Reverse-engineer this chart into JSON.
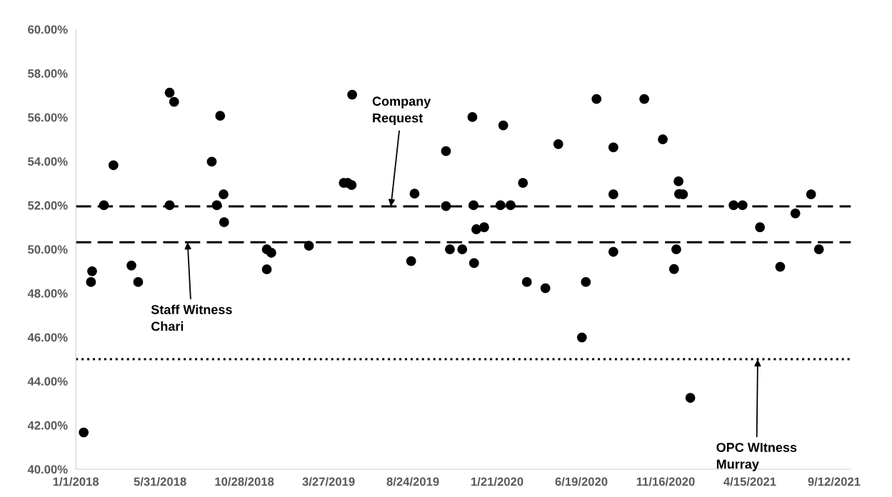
{
  "chart_data": {
    "type": "scatter",
    "marker": "circle",
    "grid": false,
    "legend": false,
    "x": [
      "2018-01-15",
      "2018-01-28",
      "2018-01-30",
      "2018-02-20",
      "2018-03-09",
      "2018-04-10",
      "2018-04-22",
      "2018-06-17",
      "2018-06-25",
      "2018-06-17",
      "2018-08-31",
      "2018-09-15",
      "2018-09-09",
      "2018-09-21",
      "2018-09-22",
      "2018-12-07",
      "2018-12-15",
      "2018-12-07",
      "2019-02-20",
      "2019-04-23",
      "2019-04-30",
      "2019-05-07",
      "2019-05-08",
      "2019-08-27",
      "2019-08-21",
      "2019-10-22",
      "2019-10-22",
      "2019-10-29",
      "2019-11-20",
      "2019-12-08",
      "2019-12-10",
      "2019-12-11",
      "2019-12-15",
      "2019-12-29",
      "2020-02-01",
      "2020-01-27",
      "2020-02-14",
      "2020-03-07",
      "2020-03-14",
      "2020-04-16",
      "2020-05-09",
      "2020-06-20",
      "2020-06-27",
      "2020-07-16",
      "2020-08-15",
      "2020-08-15",
      "2020-08-15",
      "2020-10-09",
      "2020-11-11",
      "2020-12-09",
      "2020-12-10",
      "2020-12-17",
      "2020-12-05",
      "2020-12-01",
      "2020-12-30",
      "2021-03-17",
      "2021-04-02",
      "2021-05-03",
      "2021-06-08",
      "2021-07-05",
      "2021-08-02",
      "2021-08-16"
    ],
    "series": [
      {
        "color": "#000000",
        "values": [
          41.67,
          48.51,
          49.0,
          52.0,
          53.82,
          49.26,
          48.51,
          57.12,
          56.7,
          52.0,
          53.98,
          56.07,
          52.0,
          52.5,
          51.23,
          50.0,
          49.84,
          49.09,
          50.16,
          53.02,
          53.02,
          52.92,
          57.03,
          52.53,
          49.46,
          54.46,
          51.96,
          50.0,
          50.0,
          56.01,
          52.0,
          49.37,
          50.91,
          51.0,
          55.63,
          52.0,
          52.0,
          53.02,
          48.51,
          48.23,
          54.78,
          45.99,
          48.51,
          56.83,
          54.63,
          52.5,
          49.88,
          56.83,
          55.0,
          53.09,
          52.51,
          52.5,
          50.0,
          49.1,
          43.24,
          52.0,
          52.0,
          51.0,
          49.2,
          51.63,
          52.5,
          50.0
        ]
      }
    ],
    "xlim": [
      "2018-01-01",
      "2021-10-12"
    ],
    "xticks": [
      {
        "value": "2018-01-01",
        "label": "1/1/2018"
      },
      {
        "value": "2018-05-31",
        "label": "5/31/2018"
      },
      {
        "value": "2018-10-28",
        "label": "10/28/2018"
      },
      {
        "value": "2019-03-27",
        "label": "3/27/2019"
      },
      {
        "value": "2019-08-24",
        "label": "8/24/2019"
      },
      {
        "value": "2020-01-21",
        "label": "1/21/2020"
      },
      {
        "value": "2020-06-19",
        "label": "6/19/2020"
      },
      {
        "value": "2020-11-16",
        "label": "11/16/2020"
      },
      {
        "value": "2021-04-15",
        "label": "4/15/2021"
      },
      {
        "value": "2021-09-12",
        "label": "9/12/2021"
      }
    ],
    "ylim": [
      40,
      60
    ],
    "yticks": [
      {
        "value": 40,
        "label": "40.00%"
      },
      {
        "value": 42,
        "label": "42.00%"
      },
      {
        "value": 44,
        "label": "44.00%"
      },
      {
        "value": 46,
        "label": "46.00%"
      },
      {
        "value": 48,
        "label": "48.00%"
      },
      {
        "value": 50,
        "label": "50.00%"
      },
      {
        "value": 52,
        "label": "52.00%"
      },
      {
        "value": 54,
        "label": "54.00%"
      },
      {
        "value": 56,
        "label": "56.00%"
      },
      {
        "value": 58,
        "label": "58.00%"
      },
      {
        "value": 60,
        "label": "60.00%"
      }
    ],
    "ref_lines": [
      {
        "axis": "y",
        "value": 51.95,
        "color": "#000000",
        "line_style": "dashed"
      },
      {
        "axis": "y",
        "value": 50.32,
        "color": "#000000",
        "line_style": "dashed"
      },
      {
        "axis": "y",
        "value": 45.0,
        "color": "#000000",
        "line_style": "dotted"
      }
    ],
    "annotations": [
      {
        "text": "Company\nRequest",
        "x": "2019-07-16",
        "y": 51.95
      },
      {
        "text": "Staff Witness\nChari",
        "x": "2018-07-19",
        "y": 50.32
      },
      {
        "text": "OPC WItness\nMurray",
        "x": "2021-04-29",
        "y": 45.0
      }
    ]
  }
}
